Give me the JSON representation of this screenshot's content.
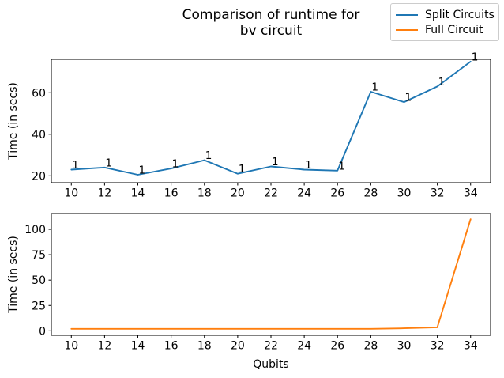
{
  "title": {
    "line1": "Comparison of runtime for",
    "line2": "bv circuit"
  },
  "legend": {
    "position": "upper right",
    "items": [
      {
        "label": "Split Circuits",
        "color": "#1f77b4"
      },
      {
        "label": "Full Circuit",
        "color": "#ff7f0e"
      }
    ]
  },
  "chart_data": [
    {
      "type": "line",
      "name": "split-circuits-subplot",
      "x": [
        10,
        12,
        14,
        16,
        18,
        20,
        22,
        24,
        26,
        28,
        30,
        32,
        34
      ],
      "series": [
        {
          "name": "Split Circuits",
          "color": "#1f77b4",
          "values": [
            23,
            24,
            20.5,
            23.5,
            27.5,
            21,
            24.5,
            23,
            22.5,
            60.5,
            55.5,
            63,
            75
          ]
        }
      ],
      "point_labels": [
        "1",
        "1",
        "1",
        "1",
        "1",
        "1",
        "1",
        "1",
        "1",
        "1",
        "1",
        "1",
        "1"
      ],
      "ylabel": "Time (in secs)",
      "xlabel": "",
      "xticks": [
        10,
        12,
        14,
        16,
        18,
        20,
        22,
        24,
        26,
        28,
        30,
        32,
        34
      ],
      "yticks": [
        20,
        40,
        60
      ],
      "xlim": [
        8.8,
        35.2
      ],
      "ylim": [
        16.7,
        76.1
      ],
      "grid": false
    },
    {
      "type": "line",
      "name": "full-circuit-subplot",
      "x": [
        10,
        12,
        14,
        16,
        18,
        20,
        22,
        24,
        26,
        28,
        30,
        32,
        34
      ],
      "series": [
        {
          "name": "Full Circuit",
          "color": "#ff7f0e",
          "values": [
            2,
            2,
            2,
            2,
            2,
            2,
            2,
            2,
            2,
            2,
            2.5,
            3.5,
            110
          ]
        }
      ],
      "ylabel": "Time (in secs)",
      "xlabel": "Qubits",
      "xticks": [
        10,
        12,
        14,
        16,
        18,
        20,
        22,
        24,
        26,
        28,
        30,
        32,
        34
      ],
      "yticks": [
        0,
        25,
        50,
        75,
        100
      ],
      "xlim": [
        8.8,
        35.2
      ],
      "ylim": [
        -4.4,
        115.6
      ],
      "grid": false
    }
  ]
}
